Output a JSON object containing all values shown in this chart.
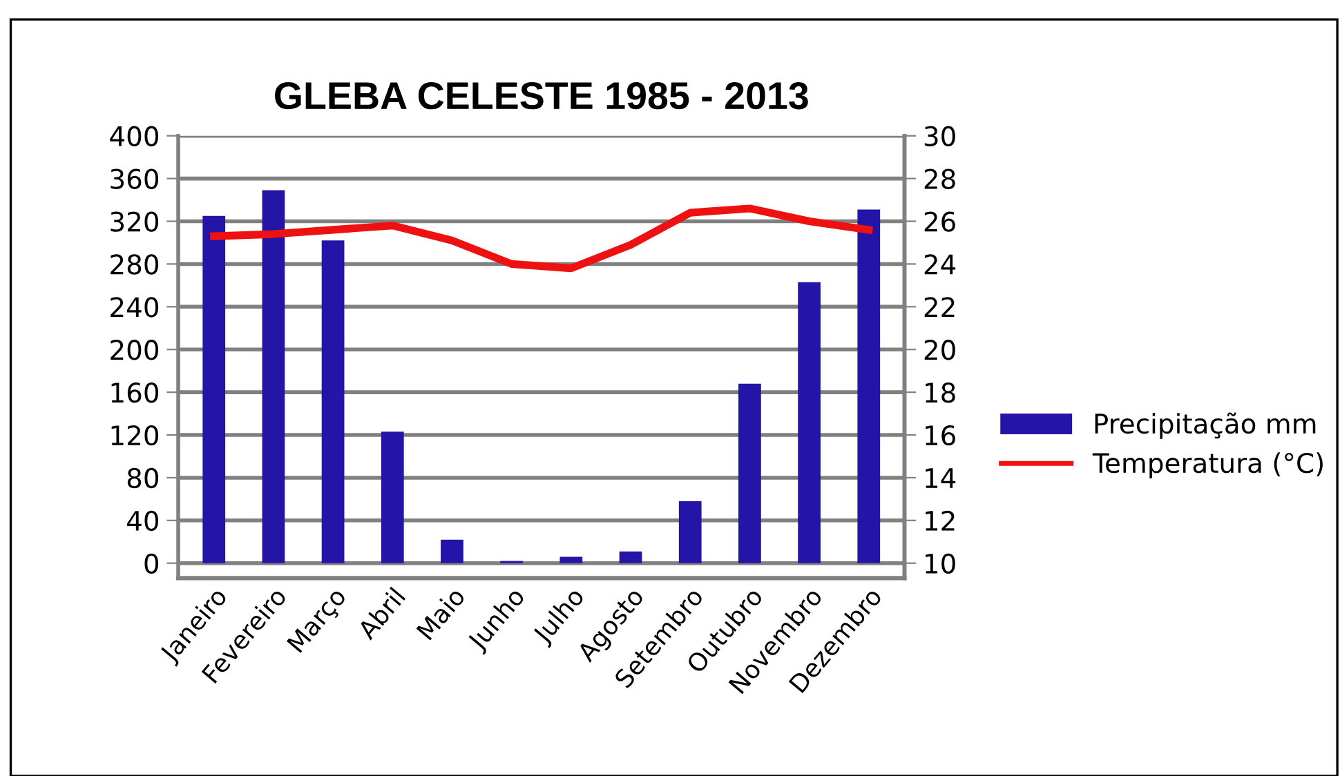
{
  "chart_data": {
    "type": "bar",
    "title": "GLEBA CELESTE 1985 - 2013",
    "categories": [
      "Janeiro",
      "Fevereiro",
      "Março",
      "Abril",
      "Maio",
      "Junho",
      "Julho",
      "Agosto",
      "Setembro",
      "Outubro",
      "Novembro",
      "Dezembro"
    ],
    "series": [
      {
        "name": "Precipitação mm",
        "color": "#2414a8",
        "values": [
          325,
          349,
          302,
          123,
          22,
          2,
          6,
          11,
          58,
          168,
          263,
          331
        ]
      },
      {
        "name": "Temperatura (°C)",
        "type": "line",
        "axis": "y2",
        "color": "#ee1111",
        "values": [
          25.3,
          25.4,
          25.6,
          25.8,
          25.1,
          24.0,
          23.8,
          24.9,
          26.4,
          26.6,
          26.0,
          25.6
        ]
      }
    ],
    "ylim": [
      -14,
      400
    ],
    "yticks": [
      0,
      40,
      80,
      120,
      160,
      200,
      240,
      280,
      320,
      360,
      400
    ],
    "y2lim": [
      9.3,
      30
    ],
    "y2ticks": [
      10,
      12,
      14,
      16,
      18,
      20,
      22,
      24,
      26,
      28,
      30
    ],
    "grid": "y",
    "legend": "right",
    "marker": "none",
    "line_style": "solid"
  }
}
